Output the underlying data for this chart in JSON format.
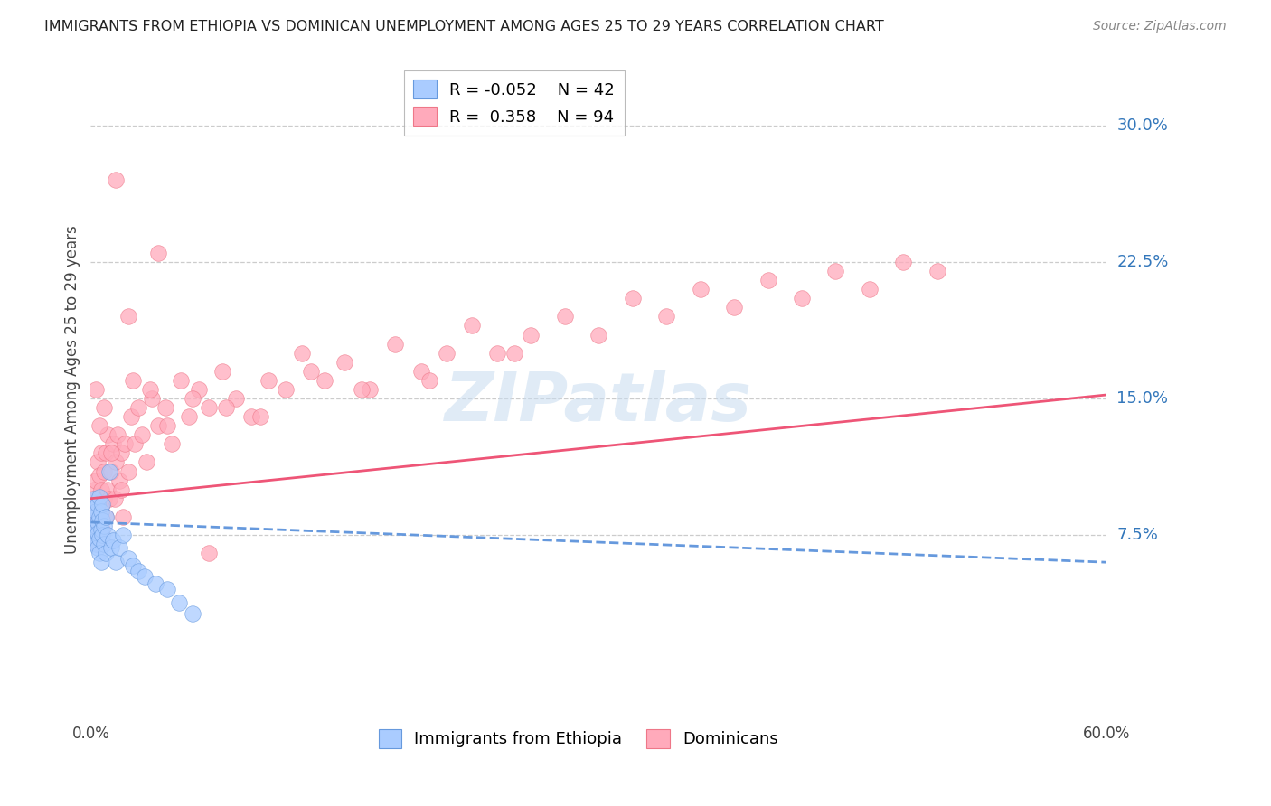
{
  "title": "IMMIGRANTS FROM ETHIOPIA VS DOMINICAN UNEMPLOYMENT AMONG AGES 25 TO 29 YEARS CORRELATION CHART",
  "source": "Source: ZipAtlas.com",
  "ylabel": "Unemployment Among Ages 25 to 29 years",
  "ytick_labels": [
    "30.0%",
    "22.5%",
    "15.0%",
    "7.5%"
  ],
  "ytick_values": [
    0.3,
    0.225,
    0.15,
    0.075
  ],
  "xlim": [
    0.0,
    0.6
  ],
  "ylim": [
    -0.025,
    0.335
  ],
  "background_color": "#ffffff",
  "grid_color": "#cccccc",
  "ethiopia_color": "#aaccff",
  "ethiopia_edge_color": "#6699dd",
  "ethiopia_line_color": "#6699dd",
  "dominican_color": "#ffaabb",
  "dominican_edge_color": "#ee7788",
  "dominican_line_color": "#ee5577",
  "ethiopia_R": -0.052,
  "ethiopia_N": 42,
  "dominican_R": 0.358,
  "dominican_N": 94,
  "dom_line_x0": 0.0,
  "dom_line_y0": 0.095,
  "dom_line_x1": 0.6,
  "dom_line_y1": 0.152,
  "eth_line_x0": 0.0,
  "eth_line_y0": 0.082,
  "eth_line_x1": 0.6,
  "eth_line_y1": 0.06,
  "ethiopia_x": [
    0.001,
    0.001,
    0.002,
    0.002,
    0.002,
    0.003,
    0.003,
    0.003,
    0.003,
    0.004,
    0.004,
    0.004,
    0.004,
    0.005,
    0.005,
    0.005,
    0.005,
    0.006,
    0.006,
    0.006,
    0.007,
    0.007,
    0.007,
    0.008,
    0.008,
    0.009,
    0.009,
    0.01,
    0.011,
    0.012,
    0.013,
    0.015,
    0.017,
    0.019,
    0.022,
    0.025,
    0.028,
    0.032,
    0.038,
    0.045,
    0.052,
    0.06
  ],
  "ethiopia_y": [
    0.09,
    0.075,
    0.085,
    0.078,
    0.095,
    0.08,
    0.072,
    0.088,
    0.07,
    0.082,
    0.068,
    0.092,
    0.076,
    0.085,
    0.073,
    0.065,
    0.096,
    0.078,
    0.088,
    0.06,
    0.083,
    0.075,
    0.092,
    0.07,
    0.08,
    0.085,
    0.065,
    0.075,
    0.11,
    0.068,
    0.072,
    0.06,
    0.068,
    0.075,
    0.062,
    0.058,
    0.055,
    0.052,
    0.048,
    0.045,
    0.038,
    0.032
  ],
  "dominican_x": [
    0.001,
    0.001,
    0.002,
    0.002,
    0.003,
    0.003,
    0.003,
    0.004,
    0.004,
    0.004,
    0.005,
    0.005,
    0.005,
    0.006,
    0.006,
    0.006,
    0.007,
    0.007,
    0.008,
    0.008,
    0.009,
    0.009,
    0.01,
    0.01,
    0.011,
    0.012,
    0.013,
    0.014,
    0.015,
    0.016,
    0.017,
    0.018,
    0.019,
    0.02,
    0.022,
    0.024,
    0.026,
    0.028,
    0.03,
    0.033,
    0.036,
    0.04,
    0.044,
    0.048,
    0.053,
    0.058,
    0.064,
    0.07,
    0.078,
    0.086,
    0.095,
    0.105,
    0.115,
    0.125,
    0.138,
    0.15,
    0.165,
    0.18,
    0.195,
    0.21,
    0.225,
    0.24,
    0.26,
    0.28,
    0.3,
    0.32,
    0.34,
    0.36,
    0.38,
    0.4,
    0.42,
    0.44,
    0.46,
    0.48,
    0.5,
    0.003,
    0.005,
    0.008,
    0.012,
    0.018,
    0.025,
    0.035,
    0.045,
    0.06,
    0.08,
    0.1,
    0.13,
    0.16,
    0.2,
    0.25,
    0.015,
    0.022,
    0.04,
    0.07
  ],
  "dominican_y": [
    0.085,
    0.095,
    0.1,
    0.075,
    0.09,
    0.105,
    0.08,
    0.088,
    0.115,
    0.07,
    0.095,
    0.108,
    0.075,
    0.1,
    0.085,
    0.12,
    0.092,
    0.078,
    0.11,
    0.095,
    0.085,
    0.12,
    0.1,
    0.13,
    0.095,
    0.11,
    0.125,
    0.095,
    0.115,
    0.13,
    0.105,
    0.12,
    0.085,
    0.125,
    0.11,
    0.14,
    0.125,
    0.145,
    0.13,
    0.115,
    0.15,
    0.135,
    0.145,
    0.125,
    0.16,
    0.14,
    0.155,
    0.145,
    0.165,
    0.15,
    0.14,
    0.16,
    0.155,
    0.175,
    0.16,
    0.17,
    0.155,
    0.18,
    0.165,
    0.175,
    0.19,
    0.175,
    0.185,
    0.195,
    0.185,
    0.205,
    0.195,
    0.21,
    0.2,
    0.215,
    0.205,
    0.22,
    0.21,
    0.225,
    0.22,
    0.155,
    0.135,
    0.145,
    0.12,
    0.1,
    0.16,
    0.155,
    0.135,
    0.15,
    0.145,
    0.14,
    0.165,
    0.155,
    0.16,
    0.175,
    0.27,
    0.195,
    0.23,
    0.065
  ]
}
